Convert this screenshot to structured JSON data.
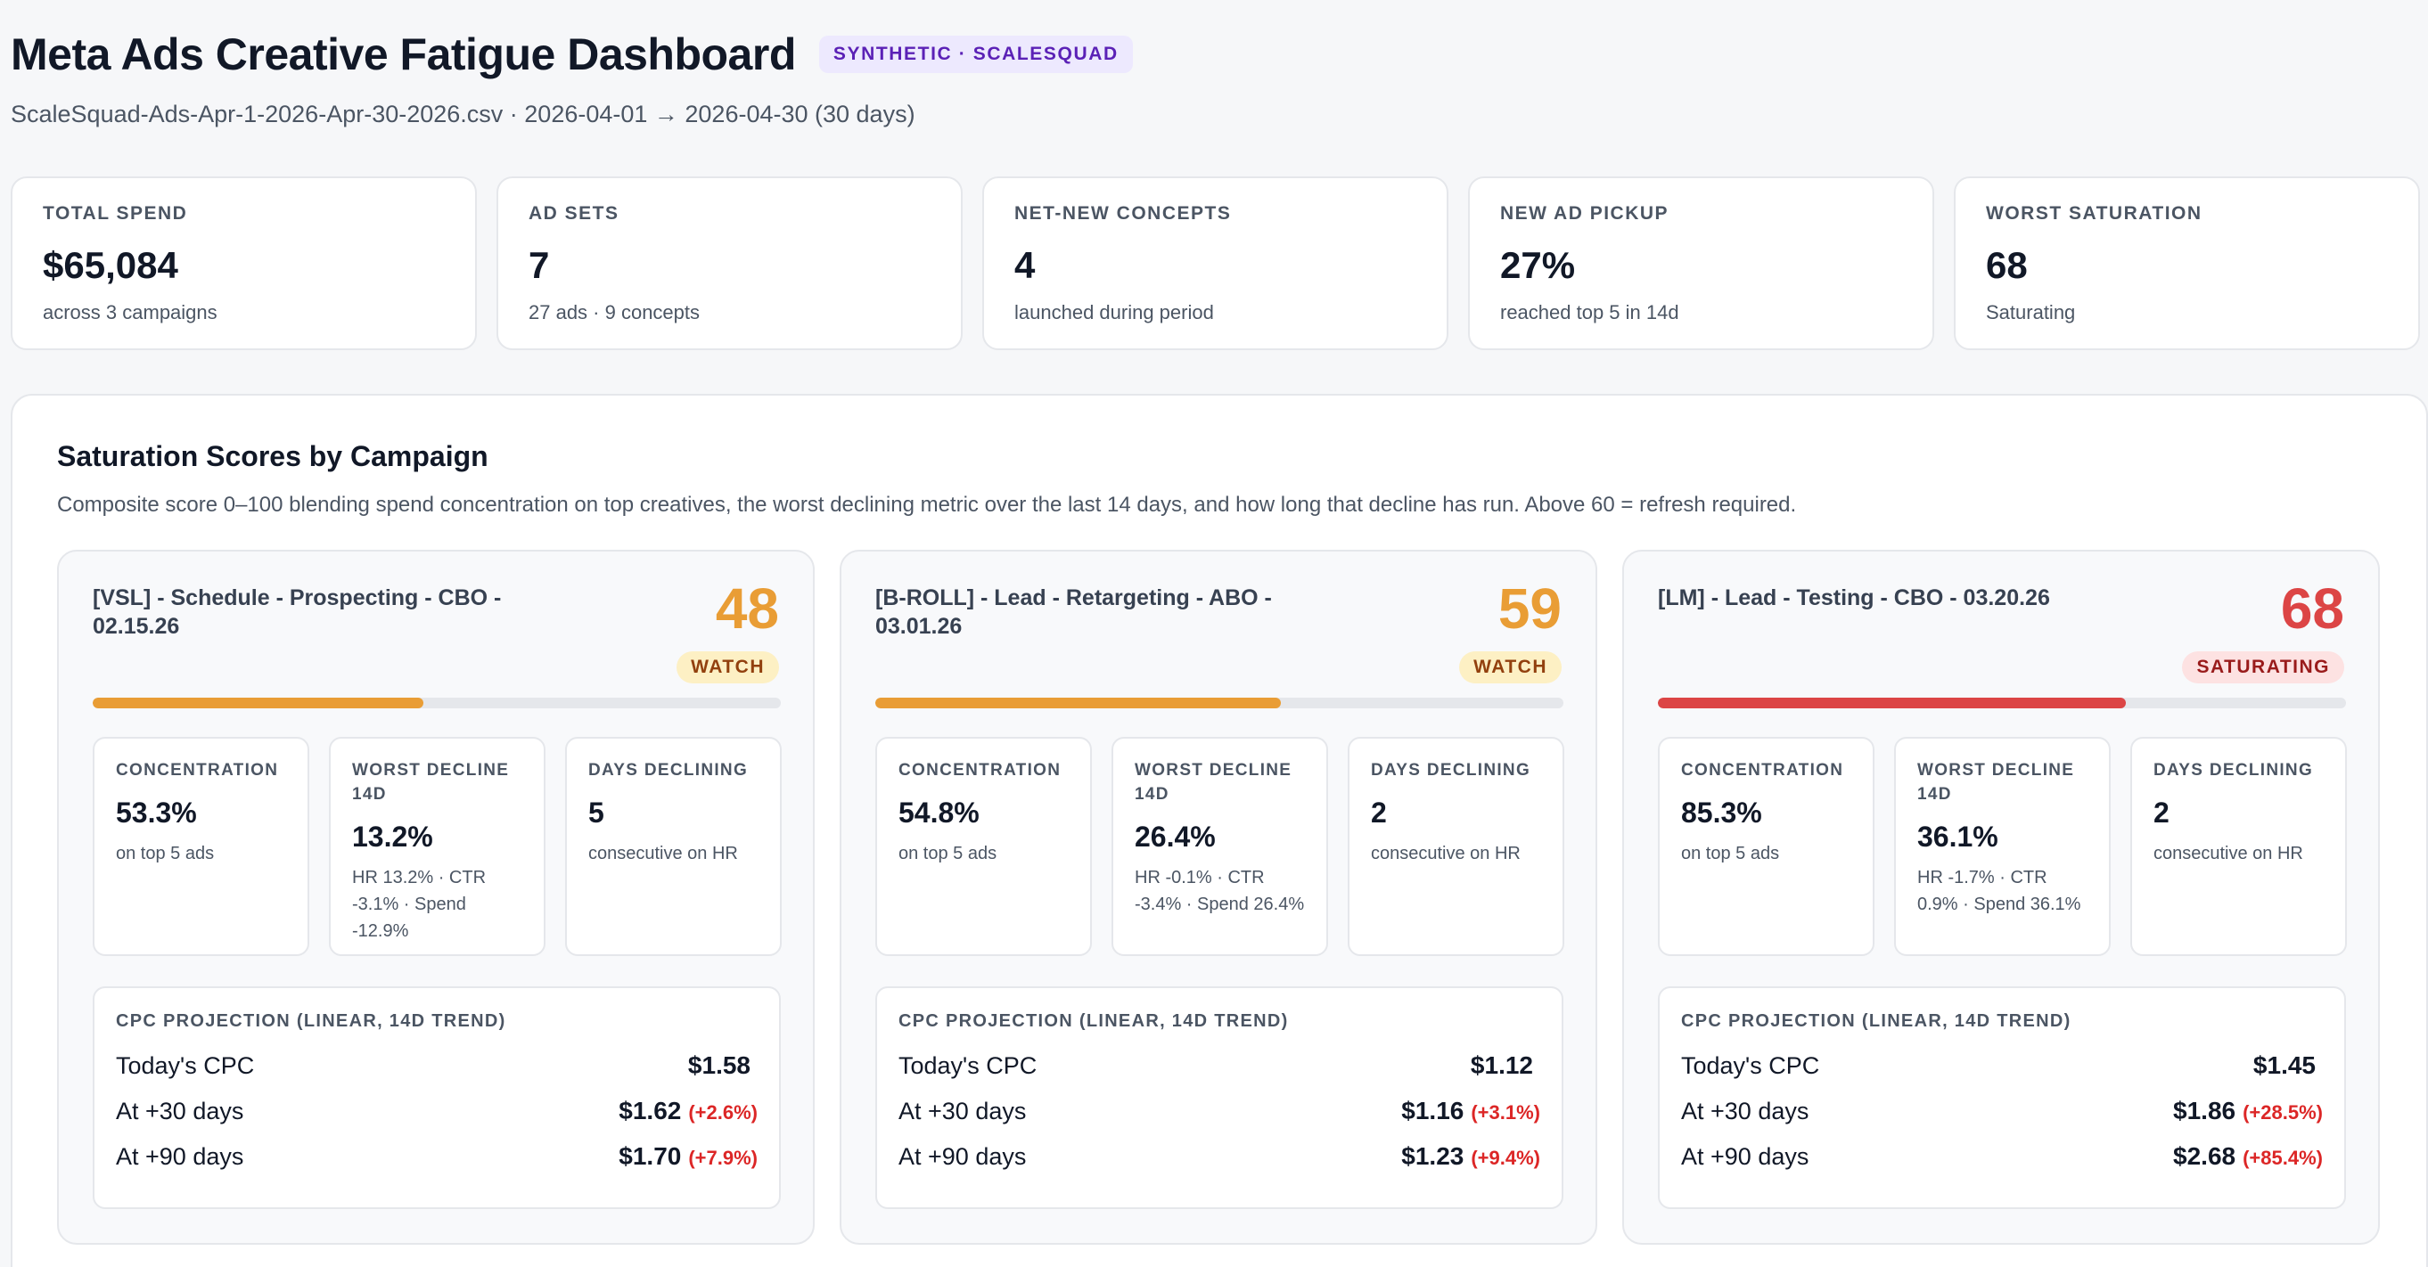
{
  "header": {
    "title": "Meta Ads Creative Fatigue Dashboard",
    "tag": "SYNTHETIC · SCALESQUAD",
    "subtitle": "ScaleSquad-Ads-Apr-1-2026-Apr-30-2026.csv · 2026-04-01 → 2026-04-30 (30 days)"
  },
  "kpis": [
    {
      "label": "TOTAL SPEND",
      "value": "$65,084",
      "sub": "across 3 campaigns"
    },
    {
      "label": "AD SETS",
      "value": "7",
      "sub": "27 ads · 9 concepts"
    },
    {
      "label": "NET-NEW CONCEPTS",
      "value": "4",
      "sub": "launched during period"
    },
    {
      "label": "NEW AD PICKUP",
      "value": "27%",
      "sub": "reached top 5 in 14d"
    },
    {
      "label": "WORST SATURATION",
      "value": "68",
      "sub": "Saturating"
    }
  ],
  "panel": {
    "title": "Saturation Scores by Campaign",
    "description": "Composite score 0–100 blending spend concentration on top creatives, the worst declining metric over the last 14 days, and how long that decline has run. Above 60 = refresh required."
  },
  "colors": {
    "watch": "#e99d35",
    "saturating": "#dc4545",
    "watch_badge_bg": "#fdf0c4",
    "watch_badge_text": "#92400e",
    "sat_badge_bg": "#fde2e2",
    "sat_badge_text": "#991b1b",
    "accent": "#5b21b6"
  },
  "campaigns": [
    {
      "name": "[VSL] - Schedule - Prospecting - CBO - 02.15.26",
      "score": "48",
      "score_value": 48,
      "status": "WATCH",
      "metrics": [
        {
          "label": "CONCENTRATION",
          "value": "53.3%",
          "sub": "on top 5 ads"
        },
        {
          "label": "WORST DECLINE 14D",
          "value": "13.2%",
          "sub": "HR 13.2% · CTR -3.1% · Spend -12.9%"
        },
        {
          "label": "DAYS DECLINING",
          "value": "5",
          "sub": "consecutive on HR"
        }
      ],
      "projection": {
        "label": "CPC PROJECTION (LINEAR, 14D TREND)",
        "rows": [
          {
            "name": "Today's CPC",
            "value": "$1.58",
            "delta": ""
          },
          {
            "name": "At +30 days",
            "value": "$1.62",
            "delta": "(+2.6%)"
          },
          {
            "name": "At +90 days",
            "value": "$1.70",
            "delta": "(+7.9%)"
          }
        ]
      }
    },
    {
      "name": "[B-ROLL] - Lead - Retargeting - ABO - 03.01.26",
      "score": "59",
      "score_value": 59,
      "status": "WATCH",
      "metrics": [
        {
          "label": "CONCENTRATION",
          "value": "54.8%",
          "sub": "on top 5 ads"
        },
        {
          "label": "WORST DECLINE 14D",
          "value": "26.4%",
          "sub": "HR -0.1% · CTR -3.4% · Spend 26.4%"
        },
        {
          "label": "DAYS DECLINING",
          "value": "2",
          "sub": "consecutive on HR"
        }
      ],
      "projection": {
        "label": "CPC PROJECTION (LINEAR, 14D TREND)",
        "rows": [
          {
            "name": "Today's CPC",
            "value": "$1.12",
            "delta": ""
          },
          {
            "name": "At +30 days",
            "value": "$1.16",
            "delta": "(+3.1%)"
          },
          {
            "name": "At +90 days",
            "value": "$1.23",
            "delta": "(+9.4%)"
          }
        ]
      }
    },
    {
      "name": "[LM] - Lead - Testing - CBO - 03.20.26",
      "score": "68",
      "score_value": 68,
      "status": "SATURATING",
      "metrics": [
        {
          "label": "CONCENTRATION",
          "value": "85.3%",
          "sub": "on top 5 ads"
        },
        {
          "label": "WORST DECLINE 14D",
          "value": "36.1%",
          "sub": "HR -1.7% · CTR 0.9% · Spend 36.1%"
        },
        {
          "label": "DAYS DECLINING",
          "value": "2",
          "sub": "consecutive on HR"
        }
      ],
      "projection": {
        "label": "CPC PROJECTION (LINEAR, 14D TREND)",
        "rows": [
          {
            "name": "Today's CPC",
            "value": "$1.45",
            "delta": ""
          },
          {
            "name": "At +30 days",
            "value": "$1.86",
            "delta": "(+28.5%)"
          },
          {
            "name": "At +90 days",
            "value": "$2.68",
            "delta": "(+85.4%)"
          }
        ]
      }
    }
  ]
}
